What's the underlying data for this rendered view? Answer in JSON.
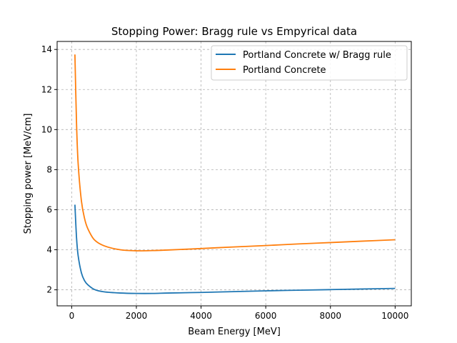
{
  "chart_data": {
    "type": "line",
    "title": "Stopping Power: Bragg rule vs Empyrical data",
    "xlabel": "Beam Energy [MeV]",
    "ylabel": "Stopping power [MeV/cm]",
    "xlim": [
      -450,
      10500
    ],
    "ylim": [
      1.2,
      14.4
    ],
    "xticks": [
      0,
      2000,
      4000,
      6000,
      8000,
      10000
    ],
    "yticks": [
      2,
      4,
      6,
      8,
      10,
      12,
      14
    ],
    "grid": true,
    "legend_position": "top-right",
    "series": [
      {
        "name": "Portland Concrete w/ Bragg rule",
        "color": "#1f77b4",
        "x": [
          100,
          150,
          200,
          300,
          400,
          500,
          700,
          1000,
          1500,
          2000,
          2500,
          3000,
          4000,
          5000,
          6000,
          7000,
          8000,
          9000,
          10000
        ],
        "y": [
          6.25,
          4.6,
          3.7,
          2.85,
          2.45,
          2.25,
          2.02,
          1.9,
          1.84,
          1.82,
          1.82,
          1.84,
          1.87,
          1.91,
          1.95,
          1.98,
          2.01,
          2.04,
          2.07
        ]
      },
      {
        "name": "Portland Concrete",
        "color": "#ff7f0e",
        "x": [
          100,
          150,
          200,
          300,
          400,
          500,
          700,
          1000,
          1500,
          2000,
          2500,
          3000,
          4000,
          5000,
          6000,
          7000,
          8000,
          9000,
          10000
        ],
        "y": [
          13.75,
          10.3,
          8.3,
          6.45,
          5.55,
          5.05,
          4.5,
          4.2,
          4.0,
          3.95,
          3.96,
          3.99,
          4.06,
          4.14,
          4.21,
          4.29,
          4.36,
          4.43,
          4.5
        ]
      }
    ]
  }
}
